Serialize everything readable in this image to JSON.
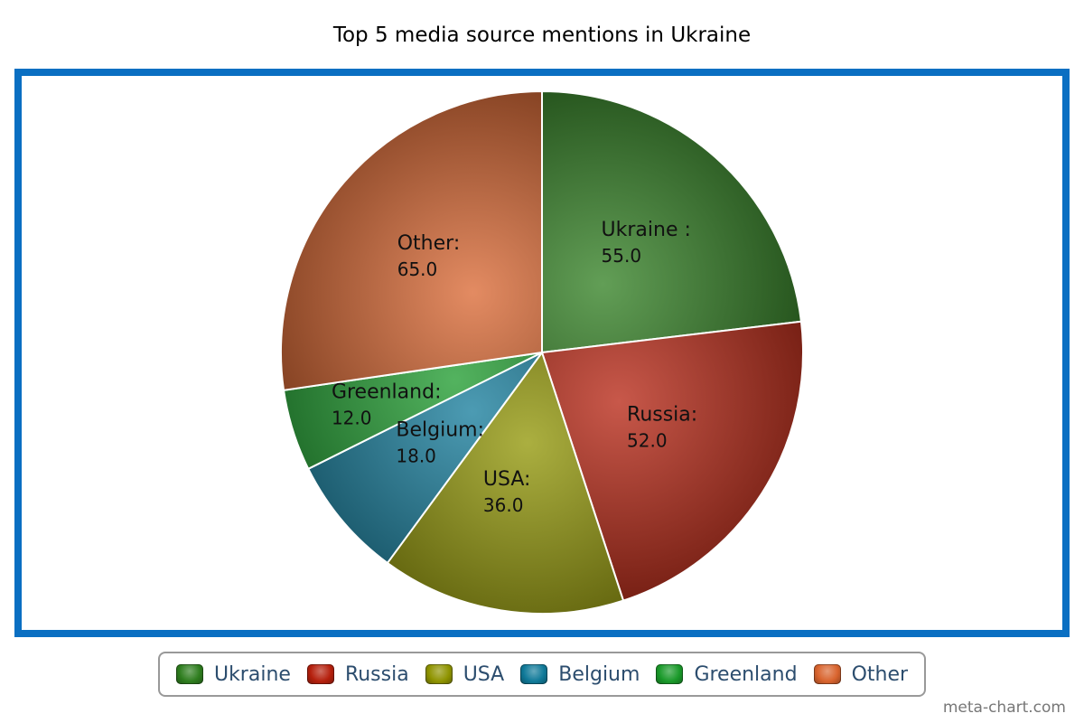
{
  "chart_data": {
    "type": "pie",
    "title": "Top 5 media source mentions in Ukraine",
    "slices": [
      {
        "label": "Ukraine",
        "slice_label": "Ukraine :",
        "value": 55.0,
        "value_text": "55.0",
        "color": "#2e7d1e"
      },
      {
        "label": "Russia",
        "slice_label": "Russia:",
        "value": 52.0,
        "value_text": "52.0",
        "color": "#b5200d"
      },
      {
        "label": "USA",
        "slice_label": "USA:",
        "value": 36.0,
        "value_text": "36.0",
        "color": "#8f9400"
      },
      {
        "label": "Belgium",
        "slice_label": "Belgium:",
        "value": 18.0,
        "value_text": "18.0",
        "color": "#107a99"
      },
      {
        "label": "Greenland",
        "slice_label": "Greenland:",
        "value": 12.0,
        "value_text": "12.0",
        "color": "#1a9a2a"
      },
      {
        "label": "Other",
        "slice_label": "Other:",
        "value": 65.0,
        "value_text": "65.0",
        "color": "#d9642e"
      }
    ],
    "legend_position": "bottom"
  },
  "colors": {
    "frame_border": "#0a6fc2",
    "legend_text": "#2c4d6e"
  },
  "credit": "meta-chart.com"
}
